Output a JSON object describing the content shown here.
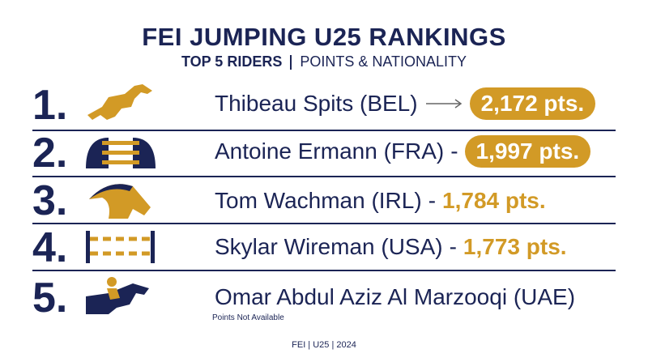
{
  "header": {
    "title": "FEI JUMPING U25 RANKINGS",
    "subtitle_left": "TOP 5 RIDERS",
    "subtitle_right": "POINTS & NATIONALITY"
  },
  "rankings": [
    {
      "rank": "1.",
      "rider": "Thibeau Spits (BEL)",
      "points": "2,172 pts."
    },
    {
      "rank": "2.",
      "rider": "Antoine Ermann (FRA)",
      "separator": "-",
      "points": "1,997 pts."
    },
    {
      "rank": "3.",
      "rider": "Tom Wachman (IRL)",
      "separator": "-",
      "points": "1,784 pts."
    },
    {
      "rank": "4.",
      "rider": "Skylar Wireman (USA)",
      "separator": "-",
      "points": "1,773 pts."
    },
    {
      "rank": "5.",
      "rider": "Omar Abdul Aziz Al Marzooqi (UAE)",
      "note": "Points Not Available"
    }
  ],
  "footer": "FEI | U25 | 2024"
}
